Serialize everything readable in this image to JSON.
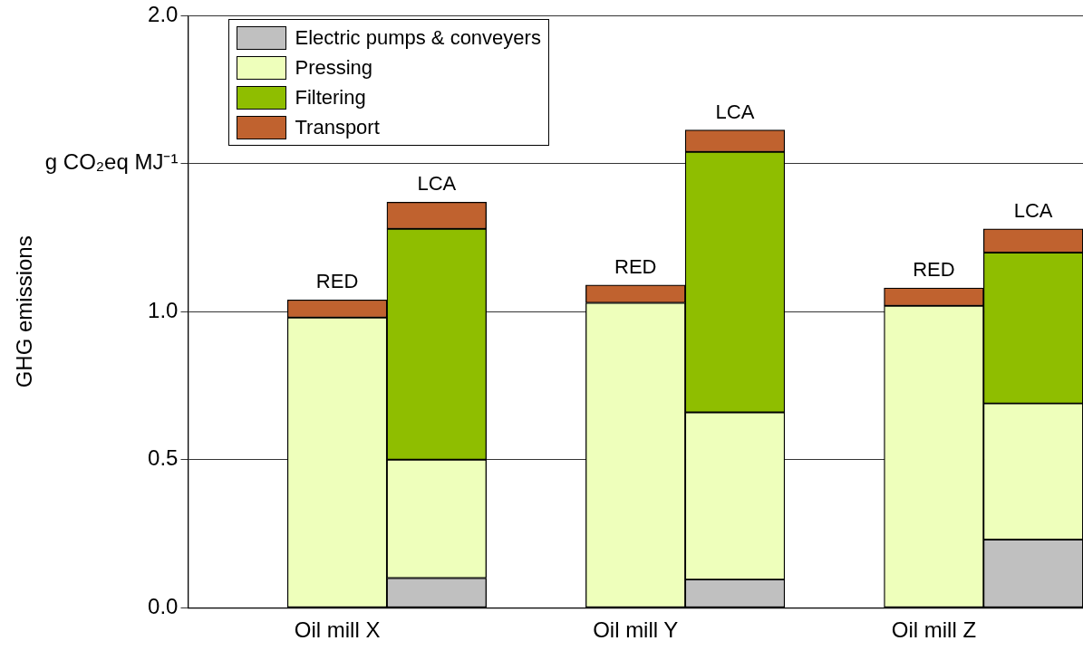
{
  "chart_data": {
    "type": "bar",
    "stacked": true,
    "ylabel": "GHG emissions",
    "categories": [
      null,
      "Oil mill X",
      null,
      null,
      "Oil mill Y",
      null,
      null,
      "Oil mill Z",
      null
    ],
    "series": [
      {
        "name": "Electric pumps & conveyers",
        "color": "#c0c0c0",
        "values": [
          null,
          null,
          0.1,
          null,
          null,
          0.095,
          null,
          null,
          0.23
        ]
      },
      {
        "name": "Pressing",
        "color": "#eeffbb",
        "values": [
          null,
          0.98,
          0.4,
          null,
          1.03,
          0.565,
          null,
          1.02,
          0.46
        ]
      },
      {
        "name": "Filtering",
        "color": "#8fbe00",
        "values": [
          null,
          null,
          0.78,
          null,
          null,
          0.88,
          null,
          null,
          0.51
        ]
      },
      {
        "name": "Transport",
        "color": "#c0622f",
        "values": [
          null,
          0.06,
          0.09,
          null,
          0.06,
          0.074,
          null,
          0.06,
          0.08
        ]
      }
    ],
    "ylim": [
      0,
      2.0
    ],
    "yticks": [
      {
        "value": 0,
        "label": "0.0"
      },
      0.5,
      {
        "value": 1,
        "label": "1.0"
      },
      {
        "value": 1.5,
        "label": "g CO₂eq MJ⁻¹"
      },
      {
        "value": 2,
        "label": "2.0"
      }
    ],
    "grid": "y",
    "legend": "top left",
    "annotations": [
      "RED",
      "LCA",
      "RED",
      "LCA",
      "RED",
      "LCA"
    ]
  }
}
